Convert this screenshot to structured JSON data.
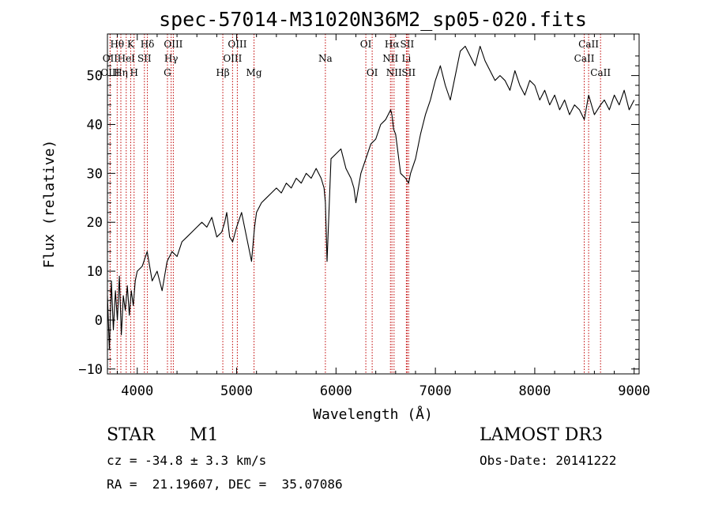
{
  "chart_data": {
    "type": "line",
    "title": "spec-57014-M31020N36M2_sp05-020.fits",
    "xlabel": "Wavelength (Å)",
    "ylabel": "Flux (relative)",
    "xlim": [
      3700,
      9050
    ],
    "ylim": [
      -11,
      58.5
    ],
    "xticks": [
      4000,
      5000,
      6000,
      7000,
      8000,
      9000
    ],
    "yticks": [
      -10,
      0,
      10,
      20,
      30,
      40,
      50
    ],
    "series": [
      {
        "name": "flux",
        "x": [
          3700,
          3720,
          3740,
          3760,
          3780,
          3800,
          3820,
          3840,
          3860,
          3880,
          3900,
          3920,
          3940,
          3960,
          3980,
          4000,
          4050,
          4100,
          4150,
          4200,
          4250,
          4300,
          4350,
          4400,
          4450,
          4500,
          4550,
          4600,
          4650,
          4700,
          4750,
          4800,
          4850,
          4880,
          4900,
          4930,
          4960,
          5000,
          5050,
          5100,
          5150,
          5180,
          5200,
          5250,
          5300,
          5350,
          5400,
          5450,
          5500,
          5550,
          5600,
          5650,
          5700,
          5750,
          5800,
          5850,
          5880,
          5893,
          5910,
          5950,
          6000,
          6050,
          6100,
          6150,
          6180,
          6200,
          6250,
          6300,
          6350,
          6400,
          6450,
          6500,
          6550,
          6563,
          6580,
          6600,
          6650,
          6700,
          6730,
          6750,
          6800,
          6850,
          6900,
          6950,
          7000,
          7050,
          7100,
          7150,
          7200,
          7250,
          7300,
          7350,
          7400,
          7450,
          7500,
          7550,
          7600,
          7650,
          7700,
          7750,
          7800,
          7850,
          7900,
          7950,
          8000,
          8050,
          8100,
          8150,
          8200,
          8250,
          8300,
          8350,
          8400,
          8450,
          8498,
          8542,
          8600,
          8662,
          8700,
          8750,
          8800,
          8850,
          8900,
          8950,
          9000
        ],
        "y": [
          5,
          -6,
          8,
          -2,
          6,
          0,
          9,
          -3,
          5,
          2,
          7,
          1,
          6,
          3,
          8,
          10,
          11,
          14,
          8,
          10,
          6,
          12,
          14,
          13,
          16,
          17,
          18,
          19,
          20,
          19,
          21,
          17,
          18,
          20,
          22,
          17,
          16,
          19,
          22,
          17,
          12,
          19,
          22,
          24,
          25,
          26,
          27,
          26,
          28,
          27,
          29,
          28,
          30,
          29,
          31,
          29,
          27,
          24,
          12,
          33,
          34,
          35,
          31,
          29,
          27,
          24,
          30,
          33,
          36,
          37,
          40,
          41,
          43,
          42,
          39,
          38,
          30,
          29,
          28,
          30,
          33,
          38,
          42,
          45,
          49,
          52,
          48,
          45,
          50,
          55,
          56,
          54,
          52,
          56,
          53,
          51,
          49,
          50,
          49,
          47,
          51,
          48,
          46,
          49,
          48,
          45,
          47,
          44,
          46,
          43,
          45,
          42,
          44,
          43,
          41,
          46,
          42,
          44,
          45,
          43,
          46,
          44,
          47,
          43,
          45
        ]
      }
    ],
    "line_markers": [
      {
        "label": "Hθ",
        "x": 3798,
        "row": 0
      },
      {
        "label": "OII",
        "x": 3727,
        "row": 1
      },
      {
        "label": "OIII",
        "x": 3727,
        "row": 2
      },
      {
        "label": "K",
        "x": 3934,
        "row": 0
      },
      {
        "label": "HeI",
        "x": 3889,
        "row": 1
      },
      {
        "label": "Hη",
        "x": 3835,
        "row": 2
      },
      {
        "label": "Hδ",
        "x": 4102,
        "row": 0
      },
      {
        "label": "SII",
        "x": 4072,
        "row": 1
      },
      {
        "label": "H",
        "x": 3968,
        "row": 2
      },
      {
        "label": "OIII",
        "x": 4363,
        "row": 0
      },
      {
        "label": "Hγ",
        "x": 4341,
        "row": 1
      },
      {
        "label": "G",
        "x": 4304,
        "row": 2
      },
      {
        "label": "OIII",
        "x": 5007,
        "row": 0
      },
      {
        "label": "OIII",
        "x": 4959,
        "row": 1
      },
      {
        "label": "Hβ",
        "x": 4861,
        "row": 2
      },
      {
        "label": "Mg",
        "x": 5175,
        "row": 2
      },
      {
        "label": "Na",
        "x": 5893,
        "row": 1
      },
      {
        "label": "OI",
        "x": 6300,
        "row": 0
      },
      {
        "label": "OI",
        "x": 6364,
        "row": 2
      },
      {
        "label": "Hα",
        "x": 6563,
        "row": 0
      },
      {
        "label": "SII",
        "x": 6716,
        "row": 0
      },
      {
        "label": "NII",
        "x": 6548,
        "row": 1
      },
      {
        "label": "Li",
        "x": 6708,
        "row": 1
      },
      {
        "label": "NII",
        "x": 6584,
        "row": 2
      },
      {
        "label": "SII",
        "x": 6731,
        "row": 2
      },
      {
        "label": "CaII",
        "x": 8542,
        "row": 0
      },
      {
        "label": "CaII",
        "x": 8498,
        "row": 1
      },
      {
        "label": "CaII",
        "x": 8662,
        "row": 2
      }
    ]
  },
  "info": {
    "object_class": "STAR",
    "subclass": "M1",
    "survey": "LAMOST DR3",
    "cz": "cz = -34.8 ± 3.3 km/s",
    "obs_date": "Obs-Date: 20141222",
    "coords": "RA =  21.19607, DEC =  35.07086"
  },
  "colors": {
    "line": "#000000",
    "marker": "#c00000",
    "background": "#ffffff"
  }
}
